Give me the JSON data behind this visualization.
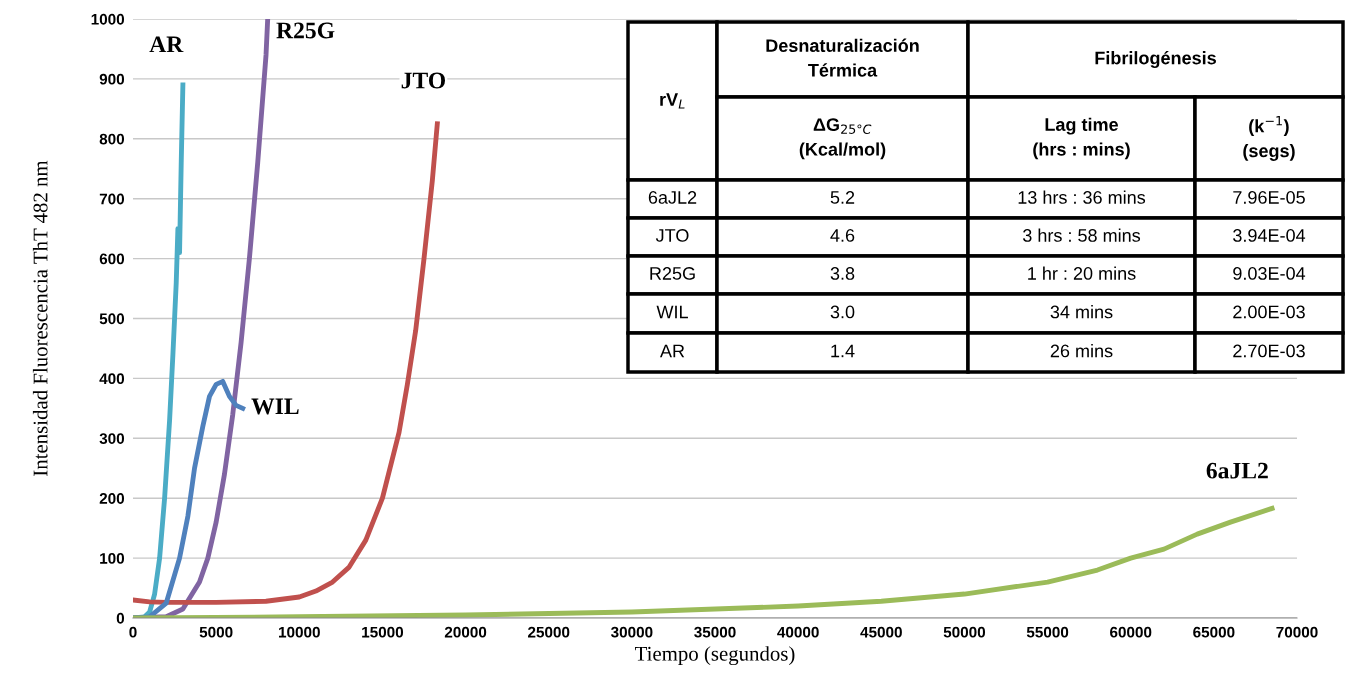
{
  "chart_data": {
    "type": "line",
    "xlabel": "Tiempo (segundos)",
    "ylabel": "Intensidad Fluorescencia ThT 482 nm",
    "xlim": [
      0,
      70000
    ],
    "xticks": [
      0,
      5000,
      10000,
      15000,
      20000,
      25000,
      30000,
      35000,
      40000,
      45000,
      50000,
      55000,
      60000,
      65000,
      70000
    ],
    "ylim": [
      0,
      1000
    ],
    "yticks": [
      0,
      100,
      200,
      300,
      400,
      500,
      600,
      700,
      800,
      900,
      1000
    ],
    "grid": "y",
    "legend": false,
    "marker": "none",
    "line_style": "solid",
    "series": [
      {
        "name": "AR",
        "color": "#4bacc6",
        "x": [
          0,
          700,
          1000,
          1300,
          1600,
          1900,
          2200,
          2400,
          2600,
          2700,
          2800,
          2900,
          3000
        ],
        "values": [
          0,
          2,
          10,
          40,
          100,
          200,
          330,
          440,
          560,
          650,
          610,
          760,
          890
        ]
      },
      {
        "name": "R25G",
        "color": "#8064a2",
        "x": [
          0,
          2000,
          3000,
          4000,
          4500,
          5000,
          5500,
          6000,
          6500,
          7000,
          7500,
          8000,
          8100
        ],
        "values": [
          0,
          2,
          15,
          60,
          100,
          160,
          240,
          340,
          460,
          600,
          760,
          940,
          1000
        ]
      },
      {
        "name": "JTO",
        "color": "#c0504d",
        "x": [
          0,
          1000,
          2000,
          5000,
          8000,
          10000,
          11000,
          12000,
          13000,
          14000,
          15000,
          16000,
          16500,
          17000,
          17500,
          18000,
          18300
        ],
        "values": [
          30,
          27,
          26,
          26,
          28,
          35,
          45,
          60,
          85,
          130,
          200,
          310,
          390,
          480,
          600,
          730,
          825
        ]
      },
      {
        "name": "WIL",
        "color": "#4f81bd",
        "x": [
          0,
          1000,
          2000,
          2800,
          3300,
          3700,
          4200,
          4600,
          5000,
          5400,
          5800,
          6200,
          6600
        ],
        "values": [
          0,
          2,
          25,
          100,
          170,
          250,
          320,
          370,
          390,
          395,
          370,
          355,
          350
        ]
      },
      {
        "name": "6aJL2",
        "color": "#9bbb59",
        "x": [
          0,
          10000,
          20000,
          30000,
          40000,
          45000,
          50000,
          55000,
          58000,
          60000,
          62000,
          64000,
          66000,
          68500
        ],
        "values": [
          0,
          2,
          5,
          10,
          20,
          28,
          40,
          60,
          80,
          100,
          115,
          140,
          160,
          183
        ]
      }
    ],
    "annotations": [
      "rV$_{L}$",
      "Desnaturalización\nTérmica",
      "Fibrilogénesis",
      "ΔG$_{25°C}$\n(Kcal/mol)",
      "Lag time\n(hrs : mins)",
      "(k$^{−1}$)\n(segs)",
      "6aJL2",
      "5.2",
      "13 hrs : 36 mins",
      "7.96E-05",
      "JTO",
      "4.6",
      "3 hrs : 58 mins",
      "3.94E-04",
      "R25G",
      "3.8",
      "1 hr : 20 mins",
      "9.03E-04",
      "WIL",
      "3.0",
      "34 mins",
      "2.00E-03",
      "AR",
      "1.4",
      "26 mins",
      "2.70E-03"
    ]
  }
}
